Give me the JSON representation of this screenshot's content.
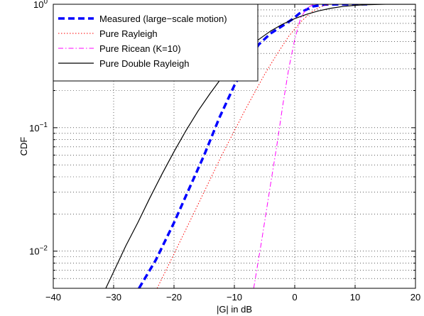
{
  "chart_data": {
    "type": "line",
    "xlabel": "|G| in dB",
    "ylabel": "CDF",
    "xlim": [
      -40,
      20
    ],
    "ylim": [
      0.005,
      1
    ],
    "yscale": "log",
    "grid": true,
    "legend_position": "top-left",
    "x_ticks": [
      "−40",
      "−30",
      "−20",
      "−10",
      "0",
      "10",
      "20"
    ],
    "y_ticks": [
      {
        "base": "10",
        "exp": "−2"
      },
      {
        "base": "10",
        "exp": "−1"
      },
      {
        "base": "10",
        "exp": "0"
      }
    ],
    "series": [
      {
        "name": "Measured (large−scale motion)",
        "color": "#0000ff",
        "style": "dashed-thick",
        "x": [
          -25.8,
          -23,
          -20,
          -17.5,
          -15,
          -12.5,
          -10,
          -8,
          -6,
          -4,
          -2,
          -0.5,
          1,
          3,
          5,
          8,
          12
        ],
        "y": [
          0.005,
          0.0085,
          0.017,
          0.032,
          0.06,
          0.12,
          0.22,
          0.33,
          0.47,
          0.58,
          0.67,
          0.75,
          0.86,
          0.96,
          0.995,
          1,
          1
        ]
      },
      {
        "name": "Pure Rayleigh",
        "color": "#ff0000",
        "style": "dotted",
        "x": [
          -22.8,
          -20,
          -16,
          -12,
          -8,
          -5,
          -3,
          -1,
          0,
          1,
          2,
          3,
          4,
          5,
          6
        ],
        "y": [
          0.005,
          0.0095,
          0.024,
          0.061,
          0.146,
          0.27,
          0.39,
          0.55,
          0.63,
          0.72,
          0.8,
          0.88,
          0.94,
          0.98,
          1
        ]
      },
      {
        "name": "Pure Ricean (K=10)",
        "color": "#ff00ff",
        "style": "dashdot",
        "x": [
          -6.8,
          -5.5,
          -4,
          -3,
          -2,
          -1,
          0,
          1,
          2,
          3,
          4
        ],
        "y": [
          0.005,
          0.012,
          0.035,
          0.07,
          0.15,
          0.3,
          0.52,
          0.78,
          0.93,
          0.99,
          1
        ]
      },
      {
        "name": "Pure Double Rayleigh",
        "color": "#000000",
        "style": "solid",
        "x": [
          -31.3,
          -30,
          -28,
          -26,
          -24,
          -22,
          -20,
          -18,
          -16,
          -14,
          -12,
          -10,
          -8,
          -6,
          -4,
          -2,
          0,
          2,
          4,
          6,
          8,
          10,
          12,
          15,
          20
        ],
        "y": [
          0.005,
          0.0068,
          0.011,
          0.017,
          0.027,
          0.042,
          0.064,
          0.095,
          0.137,
          0.19,
          0.258,
          0.337,
          0.425,
          0.517,
          0.607,
          0.69,
          0.765,
          0.83,
          0.885,
          0.928,
          0.96,
          0.98,
          0.992,
          0.999,
          1
        ]
      }
    ]
  }
}
